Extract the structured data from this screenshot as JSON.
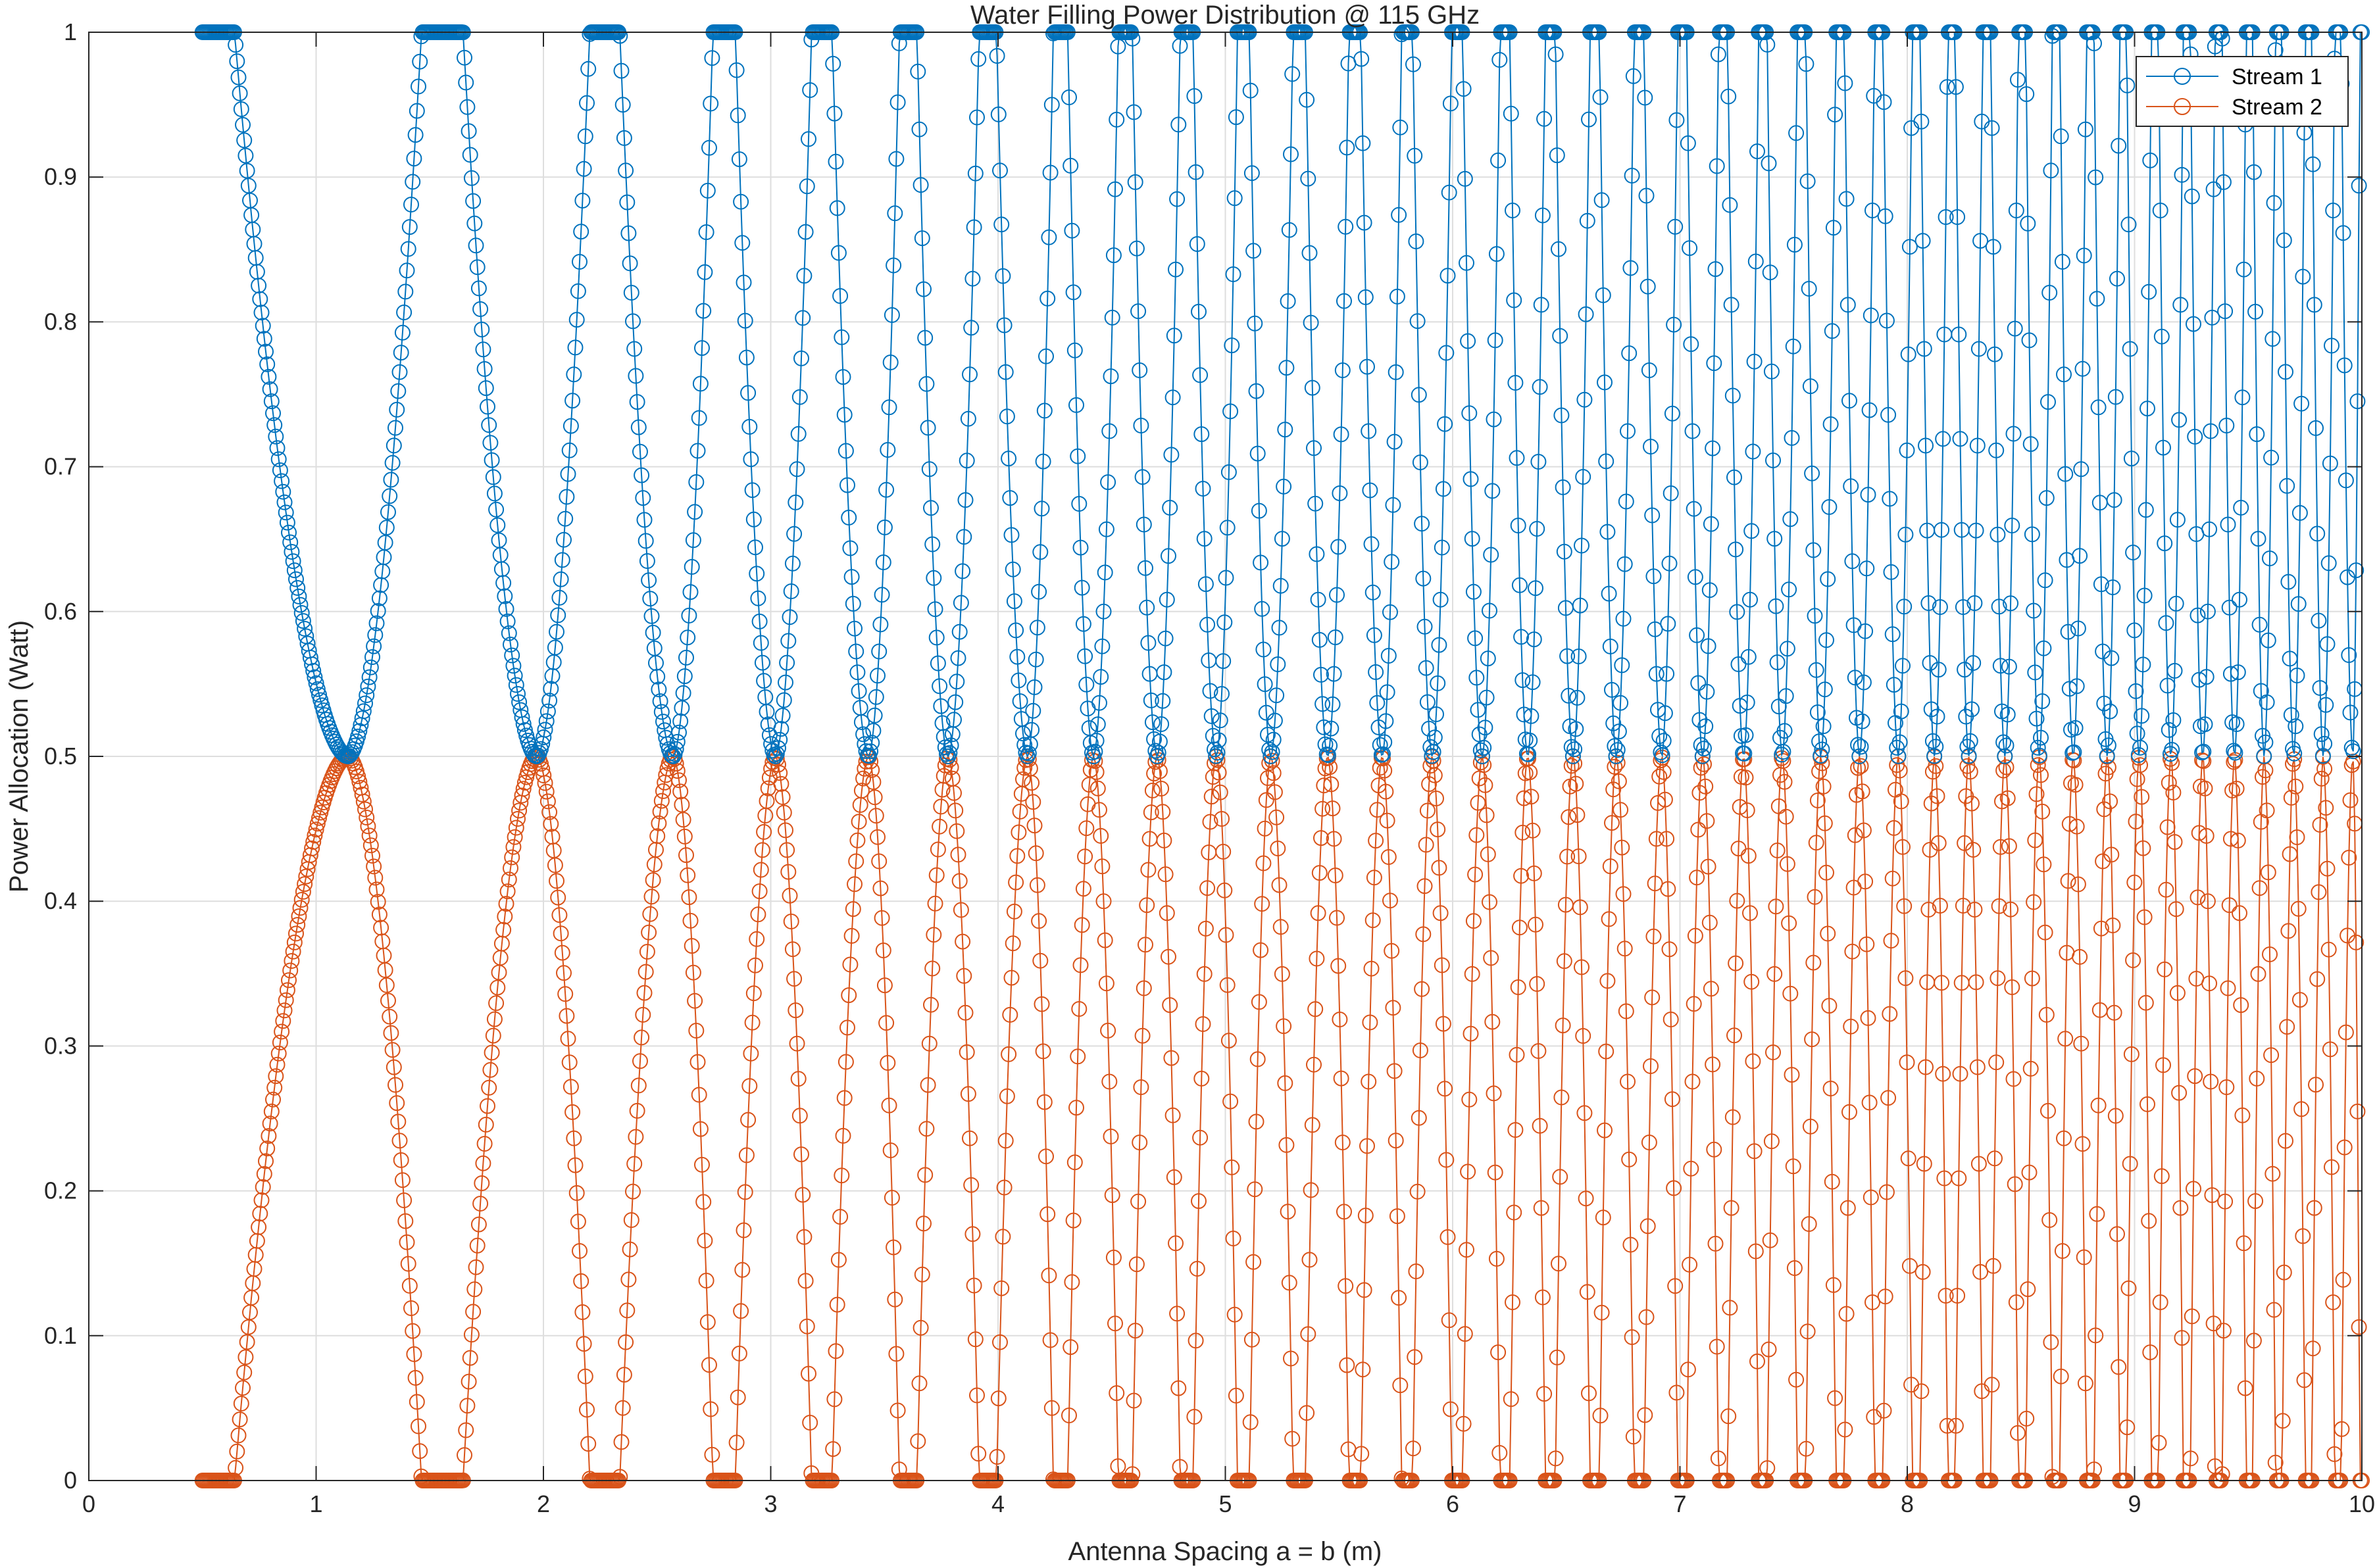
{
  "chart_data": {
    "type": "line",
    "title": "Water Filling Power Distribution @ 115 GHz",
    "xlabel": "Antenna Spacing a = b (m)",
    "ylabel": "Power Allocation (Watt)",
    "xlim": [
      0,
      10
    ],
    "ylim": [
      0,
      1
    ],
    "xticks": [
      "0",
      "1",
      "2",
      "3",
      "4",
      "5",
      "6",
      "7",
      "8",
      "9",
      "10"
    ],
    "yticks": [
      "0",
      "0.1",
      "0.2",
      "0.3",
      "0.4",
      "0.5",
      "0.6",
      "0.7",
      "0.8",
      "0.9",
      "1"
    ],
    "grid": true,
    "legend_position": "top-right",
    "marker": "circle",
    "x_start": 0.5,
    "x_end": 10,
    "crossing_points": [
      1.14,
      1.97,
      2.57,
      3.02,
      3.43,
      3.78,
      4.13,
      4.42,
      4.7,
      4.96,
      5.2,
      5.45,
      5.69,
      5.91,
      6.13,
      6.33,
      6.53,
      6.72,
      6.92,
      7.1,
      7.28,
      7.45,
      7.62,
      7.79,
      7.96,
      8.12,
      8.27,
      8.43,
      8.58,
      8.73,
      8.88,
      9.02,
      9.16,
      9.3,
      9.44,
      9.57,
      9.7,
      9.83,
      9.96
    ],
    "series": [
      {
        "name": "Stream 1",
        "color": "#0072BD"
      },
      {
        "name": "Stream 2",
        "color": "#D95319"
      }
    ]
  }
}
